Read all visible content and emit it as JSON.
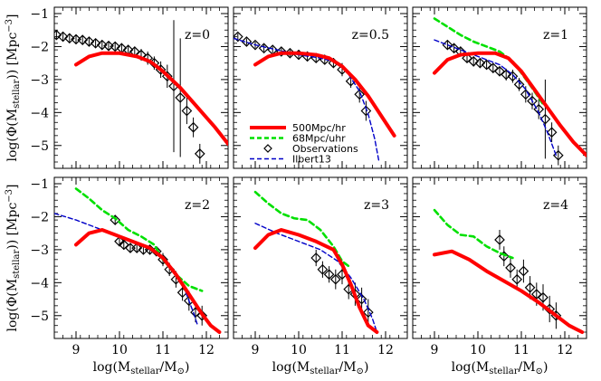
{
  "chart_data": {
    "type": "line",
    "xlabel": "log(M",
    "xlabel_sub": "stellar",
    "xlabel_tail": "/M",
    "xlabel_sun": "⊙",
    "ylabel": "log(Φ(M",
    "ylabel_sub": "stellar",
    "ylabel_tail": ")) [Mpc",
    "ylabel_sup": "−3",
    "xlim": [
      8.5,
      12.5
    ],
    "ylim": [
      -5.5,
      -1
    ],
    "xticks": [
      "9",
      "10",
      "11",
      "12"
    ],
    "xtick_values": [
      9,
      10,
      11,
      12
    ],
    "yticks": [
      "−1",
      "−2",
      "−3",
      "−4",
      "−5"
    ],
    "ytick_values": [
      -1,
      -2,
      -3,
      -4,
      -5
    ],
    "legend": [
      {
        "name": "500Mpc/hr",
        "color": "#ff0000",
        "style": "solid"
      },
      {
        "name": "68Mpc/uhr",
        "color": "#00e000",
        "style": "dashed"
      },
      {
        "name": "Observations",
        "color": "#000000",
        "style": "diamond"
      },
      {
        "name": "Ilbert13",
        "color": "#0000c8",
        "style": "dashed"
      }
    ],
    "panels": [
      {
        "label": "z=0",
        "series": [
          {
            "name": "500Mpc/hr",
            "x": [
              9.0,
              9.3,
              9.6,
              10.0,
              10.4,
              10.7,
              11.0,
              11.4,
              11.8,
              12.2,
              12.5
            ],
            "y": [
              -2.55,
              -2.3,
              -2.2,
              -2.2,
              -2.3,
              -2.45,
              -2.75,
              -3.25,
              -3.85,
              -4.45,
              -4.95
            ]
          },
          {
            "name": "Observations",
            "x": [
              8.55,
              8.7,
              8.85,
              9.0,
              9.15,
              9.3,
              9.45,
              9.6,
              9.75,
              9.9,
              10.05,
              10.2,
              10.35,
              10.5,
              10.65,
              10.8,
              10.95,
              11.1,
              11.25,
              11.4,
              11.55,
              11.7,
              11.85
            ],
            "y": [
              -1.65,
              -1.7,
              -1.75,
              -1.78,
              -1.8,
              -1.85,
              -1.9,
              -1.95,
              -1.98,
              -2.0,
              -2.05,
              -2.1,
              -2.15,
              -2.25,
              -2.35,
              -2.5,
              -2.7,
              -2.9,
              -3.2,
              -3.55,
              -3.95,
              -4.45,
              -5.25
            ],
            "err": [
              0.12,
              0.12,
              0.12,
              0.12,
              0.12,
              0.12,
              0.12,
              0.12,
              0.12,
              0.12,
              0.15,
              0.15,
              0.15,
              0.18,
              0.2,
              0.2,
              0.25,
              0.35,
              2.0,
              1.8,
              0.4,
              0.3,
              0.3
            ]
          }
        ]
      },
      {
        "label": "z=0.5",
        "series": [
          {
            "name": "500Mpc/hr",
            "x": [
              9.0,
              9.3,
              9.6,
              10.0,
              10.4,
              10.7,
              11.0,
              11.3,
              11.6,
              11.9,
              12.2
            ],
            "y": [
              -2.55,
              -2.3,
              -2.2,
              -2.2,
              -2.25,
              -2.35,
              -2.6,
              -3.0,
              -3.5,
              -4.1,
              -4.7
            ]
          },
          {
            "name": "Ilbert13",
            "x": [
              8.5,
              9.0,
              9.5,
              10.0,
              10.5,
              10.8,
              11.1,
              11.4,
              11.6,
              11.75,
              11.85
            ],
            "y": [
              -1.75,
              -1.95,
              -2.1,
              -2.25,
              -2.35,
              -2.45,
              -2.75,
              -3.35,
              -4.05,
              -4.8,
              -5.5
            ]
          },
          {
            "name": "Observations",
            "x": [
              8.6,
              8.8,
              9.0,
              9.2,
              9.4,
              9.6,
              9.8,
              10.0,
              10.2,
              10.4,
              10.6,
              10.8,
              11.0,
              11.2,
              11.4,
              11.55
            ],
            "y": [
              -1.7,
              -1.85,
              -1.95,
              -2.05,
              -2.1,
              -2.15,
              -2.2,
              -2.25,
              -2.3,
              -2.35,
              -2.4,
              -2.5,
              -2.7,
              -3.05,
              -3.45,
              -3.95
            ],
            "err": [
              0.1,
              0.1,
              0.1,
              0.1,
              0.1,
              0.1,
              0.1,
              0.12,
              0.12,
              0.12,
              0.12,
              0.15,
              0.2,
              0.2,
              0.25,
              0.3
            ]
          }
        ]
      },
      {
        "label": "z=1",
        "series": [
          {
            "name": "500Mpc/hr",
            "x": [
              9.0,
              9.3,
              9.6,
              10.0,
              10.4,
              10.7,
              11.0,
              11.3,
              11.6,
              11.9,
              12.2,
              12.5
            ],
            "y": [
              -2.8,
              -2.4,
              -2.25,
              -2.2,
              -2.2,
              -2.35,
              -2.75,
              -3.3,
              -3.85,
              -4.4,
              -4.9,
              -5.3
            ]
          },
          {
            "name": "68Mpc/uhr",
            "x": [
              9.0,
              9.3,
              9.6,
              9.9,
              10.2,
              10.5,
              10.8,
              11.0,
              11.3,
              11.5
            ],
            "y": [
              -1.15,
              -1.4,
              -1.65,
              -1.85,
              -2.0,
              -2.15,
              -2.45,
              -2.8,
              -3.35,
              -3.75
            ]
          },
          {
            "name": "Ilbert13",
            "x": [
              9.0,
              9.5,
              10.0,
              10.5,
              10.8,
              11.1,
              11.4,
              11.6,
              11.8
            ],
            "y": [
              -1.8,
              -2.05,
              -2.3,
              -2.55,
              -2.85,
              -3.3,
              -4.0,
              -4.6,
              -5.3
            ]
          },
          {
            "name": "Observations",
            "x": [
              9.3,
              9.45,
              9.6,
              9.75,
              9.9,
              10.05,
              10.2,
              10.35,
              10.5,
              10.65,
              10.8,
              10.95,
              11.1,
              11.25,
              11.4,
              11.55,
              11.7,
              11.85
            ],
            "y": [
              -1.95,
              -2.05,
              -2.15,
              -2.35,
              -2.45,
              -2.5,
              -2.55,
              -2.65,
              -2.75,
              -2.85,
              -2.9,
              -3.15,
              -3.45,
              -3.65,
              -3.9,
              -4.2,
              -4.6,
              -5.3
            ],
            "err": [
              0.12,
              0.12,
              0.15,
              0.15,
              0.15,
              0.15,
              0.15,
              0.15,
              0.15,
              0.18,
              0.2,
              0.2,
              0.25,
              0.25,
              0.3,
              1.2,
              0.3,
              0.3
            ]
          }
        ]
      },
      {
        "label": "z=2",
        "series": [
          {
            "name": "500Mpc/hr",
            "x": [
              9.0,
              9.3,
              9.6,
              10.0,
              10.4,
              10.7,
              11.0,
              11.3,
              11.6,
              11.9,
              12.1,
              12.3
            ],
            "y": [
              -2.85,
              -2.5,
              -2.4,
              -2.6,
              -2.8,
              -2.95,
              -3.25,
              -3.75,
              -4.35,
              -4.95,
              -5.3,
              -5.5
            ]
          },
          {
            "name": "68Mpc/uhr",
            "x": [
              9.0,
              9.3,
              9.6,
              9.9,
              10.2,
              10.5,
              10.8,
              11.0,
              11.3,
              11.6,
              11.9
            ],
            "y": [
              -1.15,
              -1.45,
              -1.8,
              -2.05,
              -2.4,
              -2.6,
              -2.85,
              -3.3,
              -3.75,
              -4.1,
              -4.25
            ]
          },
          {
            "name": "Ilbert13",
            "x": [
              8.5,
              9.0,
              9.5,
              10.0,
              10.5,
              10.9,
              11.2,
              11.5,
              11.7,
              11.8
            ],
            "y": [
              -1.9,
              -2.1,
              -2.35,
              -2.6,
              -2.85,
              -3.15,
              -3.55,
              -4.2,
              -4.9,
              -5.3
            ]
          },
          {
            "name": "Observations",
            "x": [
              9.9,
              10.0,
              10.1,
              10.25,
              10.4,
              10.55,
              10.7,
              10.85,
              11.0,
              11.15,
              11.3,
              11.45,
              11.6,
              11.75,
              11.9
            ],
            "y": [
              -2.1,
              -2.75,
              -2.85,
              -2.95,
              -2.95,
              -3.0,
              -3.0,
              -3.05,
              -3.3,
              -3.6,
              -3.9,
              -4.3,
              -4.55,
              -4.9,
              -5.0
            ],
            "err": [
              0.15,
              0.15,
              0.15,
              0.15,
              0.15,
              0.15,
              0.15,
              0.15,
              0.2,
              0.2,
              0.25,
              0.25,
              0.3,
              0.3,
              0.3
            ]
          }
        ]
      },
      {
        "label": "z=3",
        "series": [
          {
            "name": "500Mpc/hr",
            "x": [
              9.0,
              9.3,
              9.6,
              10.0,
              10.4,
              10.8,
              11.0,
              11.2,
              11.4,
              11.6,
              11.8
            ],
            "y": [
              -2.95,
              -2.55,
              -2.4,
              -2.55,
              -2.75,
              -3.0,
              -3.45,
              -4.05,
              -4.75,
              -5.3,
              -5.5
            ]
          },
          {
            "name": "68Mpc/uhr",
            "x": [
              9.0,
              9.3,
              9.6,
              9.9,
              10.2,
              10.5,
              10.8,
              11.0,
              11.2
            ],
            "y": [
              -1.25,
              -1.6,
              -1.9,
              -2.05,
              -2.1,
              -2.4,
              -2.9,
              -3.35,
              -3.55
            ]
          },
          {
            "name": "Ilbert13",
            "x": [
              9.0,
              9.5,
              10.0,
              10.5,
              10.9,
              11.2,
              11.5,
              11.7,
              11.8
            ],
            "y": [
              -2.2,
              -2.5,
              -2.75,
              -3.0,
              -3.35,
              -3.85,
              -4.5,
              -5.1,
              -5.5
            ]
          },
          {
            "name": "Observations",
            "x": [
              10.4,
              10.55,
              10.7,
              10.85,
              11.0,
              11.15,
              11.3,
              11.45,
              11.6
            ],
            "y": [
              -3.25,
              -3.6,
              -3.75,
              -3.9,
              -3.75,
              -4.2,
              -4.35,
              -4.5,
              -4.9
            ],
            "err": [
              0.25,
              0.25,
              0.25,
              0.3,
              0.3,
              0.3,
              0.35,
              0.35,
              0.4
            ]
          }
        ]
      },
      {
        "label": "z=4",
        "series": [
          {
            "name": "500Mpc/hr",
            "x": [
              9.0,
              9.4,
              9.8,
              10.2,
              10.6,
              11.0,
              11.4,
              11.8,
              12.1,
              12.4
            ],
            "y": [
              -3.15,
              -3.05,
              -3.3,
              -3.65,
              -3.95,
              -4.25,
              -4.6,
              -5.0,
              -5.3,
              -5.5
            ]
          },
          {
            "name": "68Mpc/uhr",
            "x": [
              9.0,
              9.3,
              9.6,
              9.9,
              10.2,
              10.5,
              10.8
            ],
            "y": [
              -1.8,
              -2.25,
              -2.55,
              -2.6,
              -2.9,
              -3.1,
              -3.25
            ]
          },
          {
            "name": "Observations",
            "x": [
              10.5,
              10.6,
              10.75,
              10.9,
              11.05,
              11.2,
              11.35,
              11.5,
              11.65,
              11.8
            ],
            "y": [
              -2.7,
              -3.2,
              -3.55,
              -3.9,
              -3.65,
              -4.15,
              -4.35,
              -4.45,
              -4.8,
              -5.0
            ],
            "err": [
              0.3,
              0.3,
              0.3,
              0.3,
              0.35,
              0.35,
              0.35,
              0.4,
              0.4,
              0.4
            ]
          }
        ]
      }
    ]
  }
}
